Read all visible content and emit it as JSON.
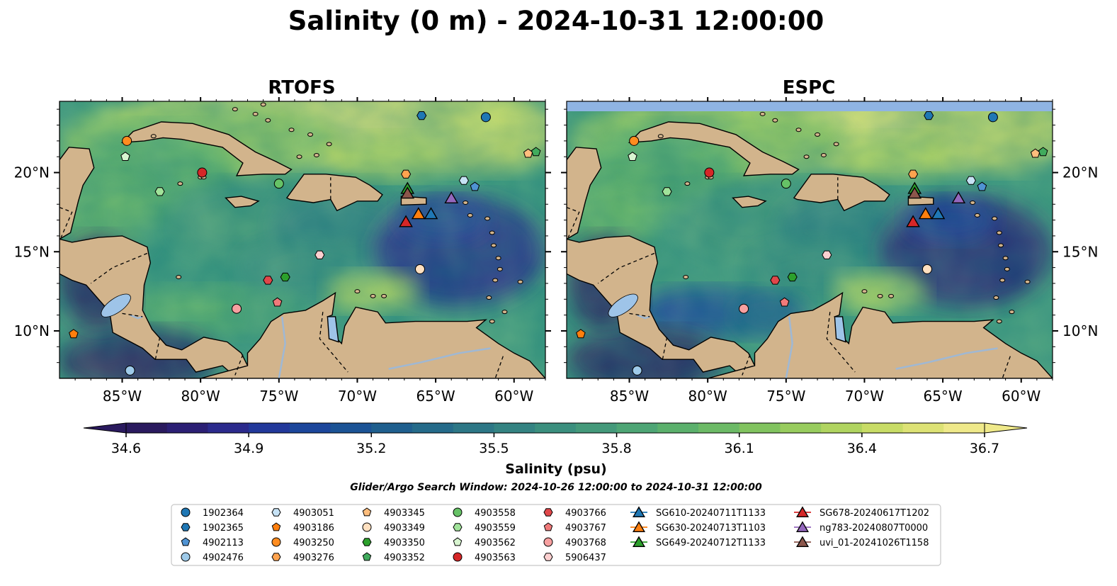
{
  "title": "Salinity (0 m) - 2024-10-31 12:00:00",
  "colorbar": {
    "label": "Salinity (psu)",
    "ticks": [
      "34.6",
      "34.9",
      "35.2",
      "35.5",
      "35.8",
      "36.1",
      "36.4",
      "36.7"
    ],
    "colors": [
      "#2a1a5e",
      "#2b1f74",
      "#2b2a8c",
      "#22389a",
      "#1c469b",
      "#1b5395",
      "#1f5f8e",
      "#256b8a",
      "#2d7786",
      "#348382",
      "#3b8f7e",
      "#44997a",
      "#4ea575",
      "#5bb06c",
      "#6cba66",
      "#81c35f",
      "#98cc5e",
      "#b0d460",
      "#c8dc66",
      "#dde275",
      "#efe98a"
    ],
    "extend": "both"
  },
  "search_window": "Glider/Argo Search Window: 2024-10-26 12:00:00 to 2024-10-31 12:00:00",
  "legend": {
    "entries": [
      {
        "label": "1902364",
        "marker": "circle",
        "color": "#1f77b4"
      },
      {
        "label": "1902365",
        "marker": "hexagon",
        "color": "#1f77b4"
      },
      {
        "label": "4902113",
        "marker": "pentagon",
        "color": "#4f93d3"
      },
      {
        "label": "4902476",
        "marker": "circle",
        "color": "#9ecae9"
      },
      {
        "label": "4903051",
        "marker": "hexagon",
        "color": "#c6e2f5"
      },
      {
        "label": "4903186",
        "marker": "pentagon",
        "color": "#ff7f0e"
      },
      {
        "label": "4903250",
        "marker": "circle",
        "color": "#ff8c1f"
      },
      {
        "label": "4903276",
        "marker": "hexagon",
        "color": "#ffa34f"
      },
      {
        "label": "4903345",
        "marker": "pentagon",
        "color": "#ffbe7d"
      },
      {
        "label": "4903349",
        "marker": "circle",
        "color": "#ffe0c0"
      },
      {
        "label": "4903350",
        "marker": "hexagon",
        "color": "#2ca02c"
      },
      {
        "label": "4903352",
        "marker": "pentagon",
        "color": "#41ab5d"
      },
      {
        "label": "4903558",
        "marker": "circle",
        "color": "#66c266"
      },
      {
        "label": "4903559",
        "marker": "hexagon",
        "color": "#a1e39a"
      },
      {
        "label": "4903562",
        "marker": "pentagon",
        "color": "#d8f5d0"
      },
      {
        "label": "4903563",
        "marker": "circle",
        "color": "#d62728"
      },
      {
        "label": "4903766",
        "marker": "hexagon",
        "color": "#e0474a"
      },
      {
        "label": "4903767",
        "marker": "pentagon",
        "color": "#f07a7a"
      },
      {
        "label": "4903768",
        "marker": "circle",
        "color": "#f7a0a0"
      },
      {
        "label": "5906437",
        "marker": "hexagon",
        "color": "#fcd0d0"
      },
      {
        "label": "SG610-20240711T1133",
        "marker": "triangle",
        "color": "#1f77b4"
      },
      {
        "label": "SG630-20240713T1103",
        "marker": "triangle",
        "color": "#ff7f0e"
      },
      {
        "label": "SG649-20240712T1133",
        "marker": "triangle",
        "color": "#2ca02c"
      },
      {
        "label": "SG678-20240617T1202",
        "marker": "triangle",
        "color": "#d62728"
      },
      {
        "label": "ng783-20240807T0000",
        "marker": "triangle",
        "color": "#9467bd"
      },
      {
        "label": "uvi_01-20241026T1158",
        "marker": "triangle",
        "color": "#8c564b"
      }
    ]
  },
  "chart_data": [
    {
      "type": "heatmap",
      "title": "RTOFS",
      "xticks": [
        "85°W",
        "80°W",
        "75°W",
        "70°W",
        "65°W",
        "60°W"
      ],
      "yticks": [
        "20°N",
        "15°N",
        "10°N"
      ],
      "xlim": [
        -89,
        -58
      ],
      "ylim": [
        7,
        24.5
      ],
      "points": [
        {
          "id": "1902364",
          "lon": -61.8,
          "lat": 23.5
        },
        {
          "id": "1902365",
          "lon": -65.9,
          "lat": 23.6
        },
        {
          "id": "4902113",
          "lon": -62.5,
          "lat": 19.1
        },
        {
          "id": "4902476",
          "lon": -84.5,
          "lat": 7.5
        },
        {
          "id": "4903051",
          "lon": -63.2,
          "lat": 19.5
        },
        {
          "id": "4903186",
          "lon": -88.1,
          "lat": 9.8
        },
        {
          "id": "4903250",
          "lon": -84.7,
          "lat": 22.0
        },
        {
          "id": "4903276",
          "lon": -66.9,
          "lat": 19.9
        },
        {
          "id": "4903345",
          "lon": -59.1,
          "lat": 21.2
        },
        {
          "id": "4903349",
          "lon": -66.0,
          "lat": 13.9
        },
        {
          "id": "4903350",
          "lon": -74.6,
          "lat": 13.4
        },
        {
          "id": "4903352",
          "lon": -58.6,
          "lat": 21.3
        },
        {
          "id": "4903558",
          "lon": -75.0,
          "lat": 19.3
        },
        {
          "id": "4903559",
          "lon": -82.6,
          "lat": 18.8
        },
        {
          "id": "4903562",
          "lon": -84.8,
          "lat": 21.0
        },
        {
          "id": "4903563",
          "lon": -79.9,
          "lat": 20.0
        },
        {
          "id": "4903766",
          "lon": -75.7,
          "lat": 13.2
        },
        {
          "id": "4903767",
          "lon": -75.1,
          "lat": 11.8
        },
        {
          "id": "4903768",
          "lon": -77.7,
          "lat": 11.4
        },
        {
          "id": "5906437",
          "lon": -72.4,
          "lat": 14.8
        },
        {
          "id": "SG610-20240711T1133",
          "lon": -65.3,
          "lat": 17.4
        },
        {
          "id": "SG630-20240713T1103",
          "lon": -66.1,
          "lat": 17.4
        },
        {
          "id": "SG649-20240712T1133",
          "lon": -66.8,
          "lat": 19.0
        },
        {
          "id": "SG678-20240617T1202",
          "lon": -66.9,
          "lat": 16.9
        },
        {
          "id": "ng783-20240807T0000",
          "lon": -64.0,
          "lat": 18.4
        },
        {
          "id": "uvi_01-20241026T1158",
          "lon": -66.8,
          "lat": 18.7
        }
      ]
    },
    {
      "type": "heatmap",
      "title": "ESPC",
      "xticks": [
        "85°W",
        "80°W",
        "75°W",
        "70°W",
        "65°W",
        "60°W"
      ],
      "yticks": [
        "20°N",
        "15°N",
        "10°N"
      ],
      "xlim": [
        -89,
        -58
      ],
      "ylim": [
        7,
        24.5
      ],
      "points": [
        {
          "id": "1902364",
          "lon": -61.8,
          "lat": 23.5
        },
        {
          "id": "1902365",
          "lon": -65.9,
          "lat": 23.6
        },
        {
          "id": "4902113",
          "lon": -62.5,
          "lat": 19.1
        },
        {
          "id": "4902476",
          "lon": -84.5,
          "lat": 7.5
        },
        {
          "id": "4903051",
          "lon": -63.2,
          "lat": 19.5
        },
        {
          "id": "4903186",
          "lon": -88.1,
          "lat": 9.8
        },
        {
          "id": "4903250",
          "lon": -84.7,
          "lat": 22.0
        },
        {
          "id": "4903276",
          "lon": -66.9,
          "lat": 19.9
        },
        {
          "id": "4903345",
          "lon": -59.1,
          "lat": 21.2
        },
        {
          "id": "4903349",
          "lon": -66.0,
          "lat": 13.9
        },
        {
          "id": "4903350",
          "lon": -74.6,
          "lat": 13.4
        },
        {
          "id": "4903352",
          "lon": -58.6,
          "lat": 21.3
        },
        {
          "id": "4903558",
          "lon": -75.0,
          "lat": 19.3
        },
        {
          "id": "4903559",
          "lon": -82.6,
          "lat": 18.8
        },
        {
          "id": "4903562",
          "lon": -84.8,
          "lat": 21.0
        },
        {
          "id": "4903563",
          "lon": -79.9,
          "lat": 20.0
        },
        {
          "id": "4903766",
          "lon": -75.7,
          "lat": 13.2
        },
        {
          "id": "4903767",
          "lon": -75.1,
          "lat": 11.8
        },
        {
          "id": "4903768",
          "lon": -77.7,
          "lat": 11.4
        },
        {
          "id": "5906437",
          "lon": -72.4,
          "lat": 14.8
        },
        {
          "id": "SG610-20240711T1133",
          "lon": -65.3,
          "lat": 17.4
        },
        {
          "id": "SG630-20240713T1103",
          "lon": -66.1,
          "lat": 17.4
        },
        {
          "id": "SG649-20240712T1133",
          "lon": -66.8,
          "lat": 19.0
        },
        {
          "id": "SG678-20240617T1202",
          "lon": -66.9,
          "lat": 16.9
        },
        {
          "id": "ng783-20240807T0000",
          "lon": -64.0,
          "lat": 18.4
        },
        {
          "id": "uvi_01-20241026T1158",
          "lon": -66.8,
          "lat": 18.7
        }
      ]
    }
  ]
}
